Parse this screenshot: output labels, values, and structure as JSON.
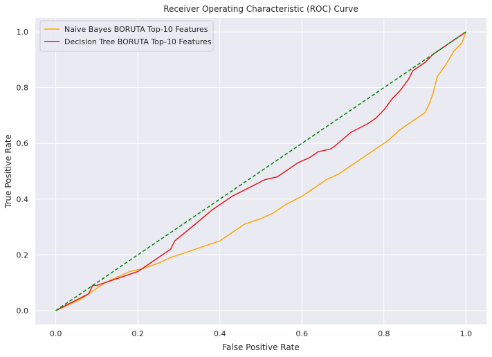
{
  "chart_data": {
    "type": "line",
    "title": "Receiver Operating Characteristic (ROC) Curve",
    "xlabel": "False Positive Rate",
    "ylabel": "True Positive Rate",
    "xlim": [
      -0.05,
      1.05
    ],
    "ylim": [
      -0.05,
      1.05
    ],
    "xticks": [
      0.0,
      0.2,
      0.4,
      0.6,
      0.8,
      1.0
    ],
    "yticks": [
      0.0,
      0.2,
      0.4,
      0.6,
      0.8,
      1.0
    ],
    "xtick_labels": [
      "0.0",
      "0.2",
      "0.4",
      "0.6",
      "0.8",
      "1.0"
    ],
    "ytick_labels": [
      "0.0",
      "0.2",
      "0.4",
      "0.6",
      "0.8",
      "1.0"
    ],
    "grid": true,
    "legend_position": "top-left",
    "background": "#eaeaf2",
    "series": [
      {
        "name": "Naive Bayes BORUTA Top-10 Features",
        "color": "#ffa500",
        "x": [
          0.0,
          0.03,
          0.06,
          0.09,
          0.12,
          0.15,
          0.18,
          0.21,
          0.25,
          0.28,
          0.32,
          0.36,
          0.4,
          0.43,
          0.46,
          0.5,
          0.53,
          0.56,
          0.6,
          0.63,
          0.66,
          0.69,
          0.72,
          0.75,
          0.78,
          0.81,
          0.84,
          0.87,
          0.9,
          0.91,
          0.92,
          0.93,
          0.95,
          0.97,
          0.99,
          1.0
        ],
        "y": [
          0.0,
          0.02,
          0.04,
          0.07,
          0.1,
          0.12,
          0.14,
          0.15,
          0.17,
          0.19,
          0.21,
          0.23,
          0.25,
          0.28,
          0.31,
          0.33,
          0.35,
          0.38,
          0.41,
          0.44,
          0.47,
          0.49,
          0.52,
          0.55,
          0.58,
          0.61,
          0.65,
          0.68,
          0.71,
          0.74,
          0.78,
          0.84,
          0.88,
          0.93,
          0.96,
          1.0
        ]
      },
      {
        "name": "Decision Tree BORUTA Top-10 Features",
        "color": "#e31a1c",
        "x": [
          0.0,
          0.04,
          0.08,
          0.09,
          0.1,
          0.12,
          0.16,
          0.2,
          0.24,
          0.28,
          0.29,
          0.34,
          0.38,
          0.42,
          0.43,
          0.47,
          0.51,
          0.54,
          0.56,
          0.59,
          0.62,
          0.64,
          0.67,
          0.68,
          0.72,
          0.76,
          0.78,
          0.8,
          0.82,
          0.84,
          0.86,
          0.87,
          0.9,
          0.92,
          0.95,
          1.0
        ],
        "y": [
          0.0,
          0.03,
          0.06,
          0.09,
          0.09,
          0.1,
          0.12,
          0.14,
          0.18,
          0.22,
          0.25,
          0.31,
          0.36,
          0.4,
          0.41,
          0.44,
          0.47,
          0.48,
          0.5,
          0.53,
          0.55,
          0.57,
          0.58,
          0.59,
          0.64,
          0.67,
          0.69,
          0.72,
          0.76,
          0.79,
          0.83,
          0.86,
          0.89,
          0.92,
          0.95,
          1.0
        ]
      },
      {
        "color": "#008000",
        "dashed": true,
        "x": [
          0.0,
          1.0
        ],
        "y": [
          0.0,
          1.0
        ]
      }
    ]
  }
}
